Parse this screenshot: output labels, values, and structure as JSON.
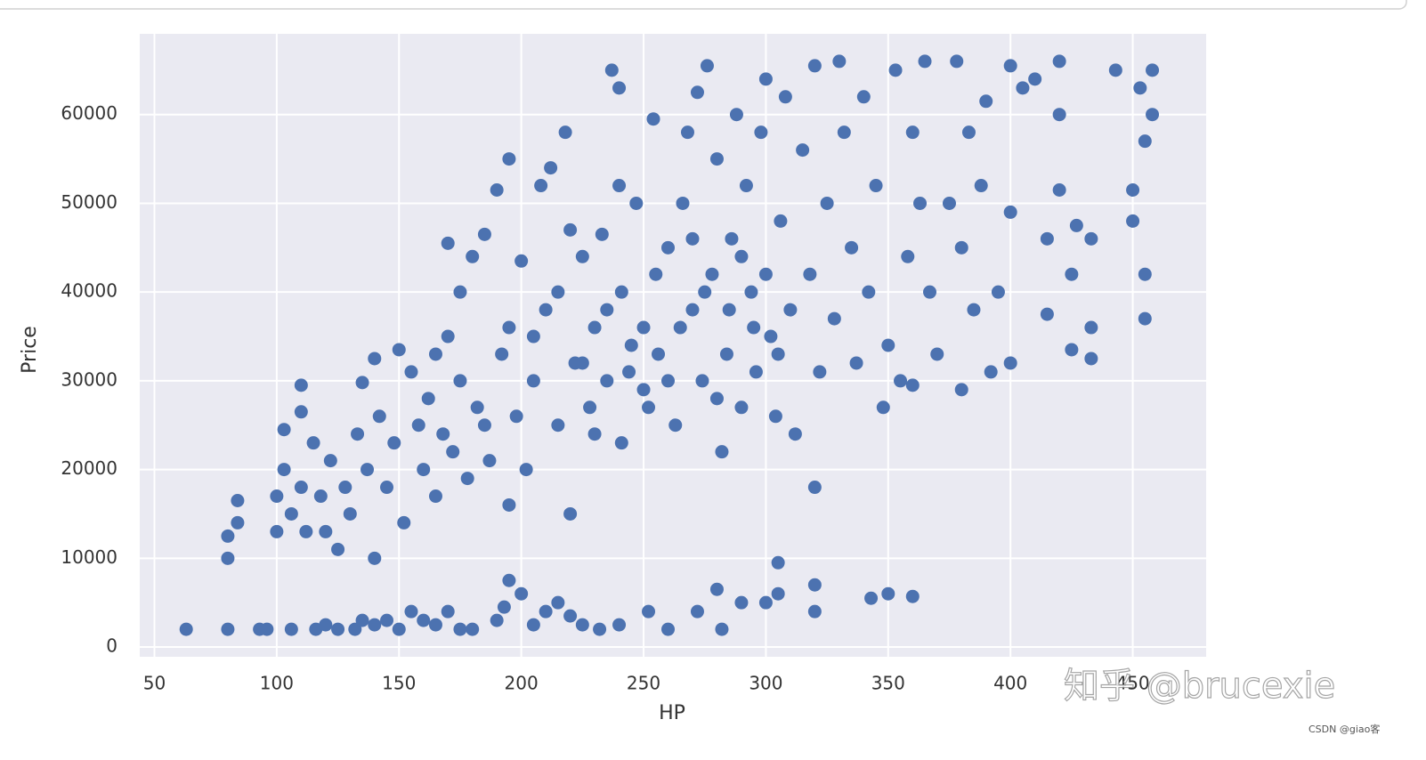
{
  "chart_data": {
    "type": "scatter",
    "x_label": "HP",
    "y_label": "Price",
    "color": "#4c72b0",
    "grid": true,
    "xlim": [
      44,
      480
    ],
    "ylim": [
      -1100,
      69100
    ],
    "xticks": [
      50,
      100,
      150,
      200,
      250,
      300,
      350,
      400,
      450
    ],
    "yticks": [
      0,
      10000,
      20000,
      30000,
      40000,
      50000,
      60000
    ],
    "annotations": [
      "知乎 @brucexie",
      "CSDN @giao客"
    ],
    "x": [
      63,
      80,
      93,
      96,
      106,
      116,
      120,
      125,
      132,
      135,
      140,
      145,
      150,
      155,
      160,
      165,
      170,
      175,
      180,
      190,
      193,
      195,
      200,
      205,
      210,
      215,
      220,
      225,
      232,
      240,
      252,
      260,
      272,
      280,
      282,
      290,
      300,
      305,
      305,
      320,
      320,
      343,
      350,
      360,
      80,
      80,
      84,
      84,
      100,
      100,
      103,
      103,
      106,
      110,
      110,
      110,
      112,
      115,
      118,
      120,
      122,
      125,
      128,
      130,
      133,
      135,
      137,
      140,
      140,
      142,
      145,
      148,
      150,
      152,
      155,
      158,
      160,
      162,
      165,
      168,
      170,
      170,
      172,
      175,
      178,
      180,
      182,
      185,
      187,
      190,
      192,
      195,
      195,
      198,
      200,
      202,
      205,
      208,
      210,
      212,
      215,
      218,
      220,
      220,
      222,
      225,
      228,
      230,
      233,
      235,
      237,
      240,
      240,
      241,
      241,
      244,
      247,
      250,
      252,
      254,
      256,
      260,
      263,
      266,
      268,
      270,
      272,
      274,
      276,
      278,
      280,
      282,
      284,
      286,
      288,
      290,
      292,
      294,
      296,
      298,
      300,
      302,
      304,
      306,
      308,
      310,
      312,
      315,
      318,
      320,
      320,
      322,
      325,
      328,
      330,
      332,
      335,
      337,
      340,
      342,
      345,
      348,
      350,
      353,
      355,
      358,
      360,
      360,
      363,
      365,
      367,
      370,
      375,
      378,
      380,
      380,
      383,
      385,
      388,
      390,
      392,
      395,
      400,
      400,
      400,
      405,
      410,
      415,
      415,
      420,
      420,
      420,
      425,
      425,
      427,
      433,
      433,
      433,
      443,
      450,
      450,
      453,
      455,
      455,
      455,
      458,
      458,
      205,
      215,
      225,
      235,
      245,
      255,
      265,
      275,
      285,
      295,
      305,
      260,
      280,
      300,
      270,
      290,
      250,
      230,
      185,
      195,
      175,
      165
    ],
    "values": [
      2000,
      2000,
      2000,
      2000,
      2000,
      2000,
      2500,
      2000,
      2000,
      3000,
      2500,
      3000,
      2000,
      4000,
      3000,
      2500,
      4000,
      2000,
      2000,
      3000,
      4500,
      7500,
      6000,
      2500,
      4000,
      5000,
      3500,
      2500,
      2000,
      2500,
      4000,
      2000,
      4000,
      6500,
      2000,
      5000,
      5000,
      9500,
      6000,
      7000,
      4000,
      5500,
      6000,
      5700,
      10000,
      12500,
      14000,
      16500,
      13000,
      17000,
      24500,
      20000,
      15000,
      29500,
      26500,
      18000,
      13000,
      23000,
      17000,
      13000,
      21000,
      11000,
      18000,
      15000,
      24000,
      29800,
      20000,
      32500,
      10000,
      26000,
      18000,
      23000,
      33500,
      14000,
      31000,
      25000,
      20000,
      28000,
      17000,
      24000,
      45500,
      35000,
      22000,
      30000,
      19000,
      44000,
      27000,
      46500,
      21000,
      51500,
      33000,
      55000,
      16000,
      26000,
      43500,
      20000,
      30000,
      52000,
      38000,
      54000,
      25000,
      58000,
      47000,
      15000,
      32000,
      44000,
      27000,
      36000,
      46500,
      30000,
      65000,
      63000,
      52000,
      40000,
      23000,
      31000,
      50000,
      36000,
      27000,
      59500,
      33000,
      45000,
      25000,
      50000,
      58000,
      38000,
      62500,
      30000,
      65500,
      42000,
      55000,
      22000,
      33000,
      46000,
      60000,
      27000,
      52000,
      40000,
      31000,
      58000,
      64000,
      35000,
      26000,
      48000,
      62000,
      38000,
      24000,
      56000,
      42000,
      65500,
      18000,
      31000,
      50000,
      37000,
      66000,
      58000,
      45000,
      32000,
      62000,
      40000,
      52000,
      27000,
      34000,
      65000,
      30000,
      44000,
      58000,
      29500,
      50000,
      66000,
      40000,
      33000,
      50000,
      66000,
      29000,
      45000,
      58000,
      38000,
      52000,
      61500,
      31000,
      40000,
      32000,
      49000,
      65500,
      63000,
      64000,
      37500,
      46000,
      66000,
      51500,
      60000,
      42000,
      33500,
      47500,
      46000,
      36000,
      32500,
      65000,
      51500,
      48000,
      63000,
      42000,
      37000,
      57000,
      65000,
      60000,
      35000,
      40000,
      32000,
      38000,
      34000,
      42000,
      36000,
      40000,
      38000,
      36000,
      33000,
      30000,
      28000,
      42000,
      46000,
      44000,
      29000,
      24000,
      25000,
      36000,
      40000,
      33000
    ]
  }
}
